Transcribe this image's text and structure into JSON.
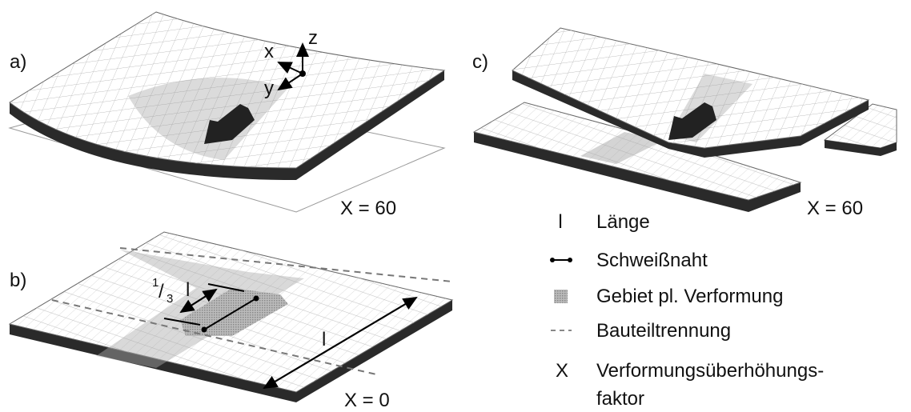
{
  "panels": [
    {
      "label": "a)",
      "factor": "X = 60",
      "axes": {
        "x": "x",
        "y": "y",
        "z": "z"
      }
    },
    {
      "label": "b)",
      "factor": "X = 0",
      "third_length": {
        "numerator": "1",
        "slash": "/",
        "denominator": "3",
        "symbol": "l"
      },
      "length": "l"
    },
    {
      "label": "c)",
      "factor": "X = 60"
    }
  ],
  "legend": [
    {
      "symbol": "l",
      "text": "Länge"
    },
    {
      "text": "Schweißnaht"
    },
    {
      "text": "Gebiet pl. Verformung"
    },
    {
      "text": "Bauteiltrennung"
    },
    {
      "symbol": "X",
      "text": [
        "Verformungsüberhöhungs-",
        "faktor"
      ]
    }
  ]
}
